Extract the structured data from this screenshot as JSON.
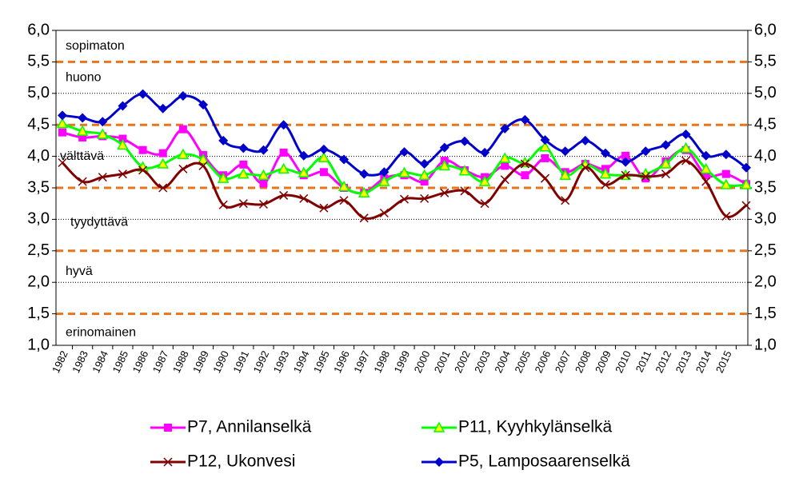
{
  "chart_data": {
    "type": "line",
    "categories": [
      "1982",
      "1983",
      "1984",
      "1985",
      "1986",
      "1987",
      "1988",
      "1989",
      "1990",
      "1991",
      "1992",
      "1993",
      "1994",
      "1995",
      "1996",
      "1997",
      "1998",
      "1999",
      "2000",
      "2001",
      "2002",
      "2003",
      "2004",
      "2005",
      "2006",
      "2007",
      "2008",
      "2009",
      "2010",
      "2011",
      "2012",
      "2013",
      "2014",
      "2015",
      null
    ],
    "series": [
      {
        "name": "P7, Annilanselkä",
        "color": "#ff00ff",
        "marker": "square",
        "values": [
          4.38,
          4.3,
          4.32,
          4.28,
          4.1,
          4.05,
          4.43,
          4.02,
          3.7,
          3.87,
          3.57,
          4.06,
          3.7,
          3.75,
          3.5,
          3.42,
          3.65,
          3.7,
          3.6,
          3.93,
          3.78,
          3.67,
          3.85,
          3.7,
          3.97,
          3.75,
          3.88,
          3.8,
          4.01,
          3.65,
          3.92,
          4.1,
          3.7,
          3.72,
          3.56
        ]
      },
      {
        "name": "P11, Kyyhkylänselkä",
        "color": "#00ff00",
        "marker": "triangle",
        "values": [
          4.52,
          4.4,
          4.35,
          4.18,
          3.83,
          3.88,
          4.03,
          3.95,
          3.65,
          3.72,
          3.7,
          3.8,
          3.74,
          3.98,
          3.52,
          3.42,
          3.6,
          3.74,
          3.7,
          3.85,
          3.77,
          3.6,
          3.97,
          3.9,
          4.15,
          3.7,
          3.87,
          3.72,
          3.7,
          3.72,
          3.88,
          4.13,
          3.8,
          3.55,
          3.55
        ]
      },
      {
        "name": "P12, Ukonvesi",
        "color": "#800000",
        "marker": "cross",
        "values": [
          3.9,
          3.6,
          3.67,
          3.72,
          3.78,
          3.5,
          3.8,
          3.85,
          3.23,
          3.25,
          3.24,
          3.38,
          3.33,
          3.18,
          3.3,
          3.02,
          3.1,
          3.32,
          3.33,
          3.42,
          3.45,
          3.25,
          3.63,
          3.88,
          3.65,
          3.3,
          3.82,
          3.55,
          3.7,
          3.68,
          3.72,
          3.93,
          3.6,
          3.05,
          3.22
        ]
      },
      {
        "name": "P5, Lamposaarenselkä",
        "color": "#0000cc",
        "marker": "diamond",
        "values": [
          4.65,
          4.61,
          4.55,
          4.8,
          4.99,
          4.76,
          4.96,
          4.82,
          4.25,
          4.13,
          4.1,
          4.5,
          4.01,
          4.11,
          3.95,
          3.72,
          3.75,
          4.07,
          3.88,
          4.14,
          4.24,
          4.06,
          4.44,
          4.58,
          4.26,
          4.08,
          4.25,
          4.05,
          3.91,
          4.08,
          4.18,
          4.35,
          4.01,
          4.03,
          3.82
        ]
      }
    ],
    "ylim": [
      1,
      6
    ],
    "yticks": [
      {
        "value": 1,
        "label": "1,0"
      },
      {
        "value": 1.5,
        "label": "1,5"
      },
      {
        "value": 2,
        "label": "2,0"
      },
      {
        "value": 2.5,
        "label": "2,5"
      },
      {
        "value": 3,
        "label": "3,0"
      },
      {
        "value": 3.5,
        "label": "3,5"
      },
      {
        "value": 4,
        "label": "4,0"
      },
      {
        "value": 4.5,
        "label": "4,5"
      },
      {
        "value": 5,
        "label": "5,0"
      },
      {
        "value": 5.5,
        "label": "5,5"
      },
      {
        "value": 6,
        "label": "6,0"
      }
    ],
    "y2lim": [
      1,
      6
    ],
    "y2ticks": [
      {
        "value": 1,
        "label": "1,0"
      },
      {
        "value": 1.5,
        "label": "1,5"
      },
      {
        "value": 2,
        "label": "2,0"
      },
      {
        "value": 2.5,
        "label": "2,5"
      },
      {
        "value": 3,
        "label": "3,0"
      },
      {
        "value": 3.5,
        "label": "3,5"
      },
      {
        "value": 4,
        "label": "4,0"
      },
      {
        "value": 4.5,
        "label": "4,5"
      },
      {
        "value": 5,
        "label": "5,0"
      },
      {
        "value": 5.5,
        "label": "5,5"
      },
      {
        "value": 6,
        "label": "6,0"
      }
    ],
    "thresholds": [
      1.5,
      2.5,
      3.5,
      4.5,
      5.5
    ],
    "threshold_color": "#e8741c",
    "annotations": [
      "sopimaton",
      "huono",
      "välttävä",
      "tyydyttävä",
      "hyvä",
      "erinomainen"
    ],
    "grid": true
  }
}
